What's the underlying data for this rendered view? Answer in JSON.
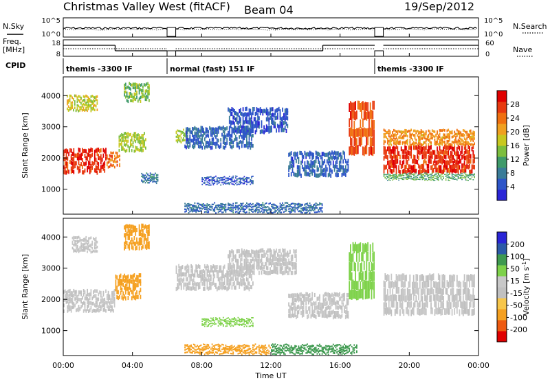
{
  "header": {
    "station": "Christmas Valley West (fitACF)",
    "beam": "Beam 04",
    "date": "19/Sep/2012"
  },
  "colors": {
    "power_scale": [
      "#2a25d6",
      "#2d55c8",
      "#3a7c98",
      "#3f9a6a",
      "#7cbe3e",
      "#c8c820",
      "#f0a020",
      "#f07010",
      "#e83a10",
      "#e00000"
    ],
    "velocity_scale": [
      "#e00000",
      "#ee5a10",
      "#f5a020",
      "#f7c64a",
      "#c0c0c0",
      "#c8c8c8",
      "#7ed24a",
      "#3f9a50",
      "#2c5aa8",
      "#2a25d6"
    ]
  },
  "chart_data": [
    {
      "type": "line",
      "name": "N.Sky / N.Search",
      "ylabel_left": "N.Sky",
      "ylabel_right": "N.Search",
      "left_ticks": [
        "10^5",
        "10^0"
      ],
      "right_ticks": [
        "10^5",
        "10^0"
      ],
      "xlim": [
        0,
        24
      ]
    },
    {
      "type": "line",
      "name": "Freq / Nave",
      "ylabel_left": "Freq.",
      "ylabel_left_unit": "[MHz]",
      "ylabel_right": "Nave",
      "left_ticks": [
        "18",
        "8"
      ],
      "right_ticks": [
        "60",
        "0"
      ],
      "xlim": [
        0,
        24
      ],
      "freq_segments": [
        {
          "t0": 0.0,
          "t1": 3.0,
          "v": 16
        },
        {
          "t0": 3.0,
          "t1": 6.0,
          "v": 12
        },
        {
          "t0": 6.5,
          "t1": 15.0,
          "v": 12
        },
        {
          "t0": 15.0,
          "t1": 18.0,
          "v": 16
        },
        {
          "t0": 18.5,
          "t1": 24.0,
          "v": 16
        }
      ]
    },
    {
      "type": "table",
      "name": "CPID",
      "label": "CPID",
      "segments": [
        {
          "start": 0.0,
          "end": 6.0,
          "text": "themis -3300 IF"
        },
        {
          "start": 6.0,
          "end": 18.0,
          "text": "normal (fast) 151 IF"
        },
        {
          "start": 18.0,
          "end": 24.0,
          "text": "themis -3300 IF"
        }
      ]
    },
    {
      "type": "heatmap",
      "name": "Power",
      "ylabel": "Slant Range [km]",
      "yticks": [
        1000,
        2000,
        3000,
        4000
      ],
      "ylim": [
        200,
        4600
      ],
      "xlim": [
        0,
        24
      ],
      "colorbar_label": "Power [dB]",
      "colorbar_ticks": [
        4,
        8,
        12,
        16,
        20,
        24,
        28
      ],
      "colorbar_range": [
        0,
        32
      ],
      "bands": [
        {
          "t0": 0.0,
          "t1": 2.5,
          "r0": 1500,
          "r1": 2300,
          "level": 28
        },
        {
          "t0": 2.5,
          "t1": 3.3,
          "r0": 1700,
          "r1": 2200,
          "level": 24
        },
        {
          "t0": 0.2,
          "t1": 2.0,
          "r0": 3500,
          "r1": 4000,
          "level": 18
        },
        {
          "t0": 3.2,
          "t1": 4.8,
          "r0": 2200,
          "r1": 2800,
          "level": 16
        },
        {
          "t0": 3.5,
          "t1": 5.0,
          "r0": 3800,
          "r1": 4400,
          "level": 14
        },
        {
          "t0": 4.5,
          "t1": 5.5,
          "r0": 1200,
          "r1": 1500,
          "level": 8
        },
        {
          "t0": 6.5,
          "t1": 7.2,
          "r0": 2500,
          "r1": 2900,
          "level": 16
        },
        {
          "t0": 7.0,
          "t1": 11.0,
          "r0": 2300,
          "r1": 3000,
          "level": 6
        },
        {
          "t0": 9.5,
          "t1": 13.0,
          "r0": 2800,
          "r1": 3600,
          "level": 5
        },
        {
          "t0": 8.0,
          "t1": 11.0,
          "r0": 1150,
          "r1": 1400,
          "level": 5
        },
        {
          "t0": 13.0,
          "t1": 16.5,
          "r0": 1400,
          "r1": 2200,
          "level": 6
        },
        {
          "t0": 16.5,
          "t1": 18.0,
          "r0": 2100,
          "r1": 3800,
          "level": 26
        },
        {
          "t0": 18.5,
          "t1": 23.8,
          "r0": 1500,
          "r1": 2400,
          "level": 28
        },
        {
          "t0": 18.5,
          "t1": 23.8,
          "r0": 2400,
          "r1": 2900,
          "level": 22
        },
        {
          "t0": 18.5,
          "t1": 23.8,
          "r0": 1300,
          "r1": 1500,
          "level": 12
        },
        {
          "t0": 7.0,
          "t1": 15.0,
          "r0": 250,
          "r1": 550,
          "level": 7
        }
      ]
    },
    {
      "type": "heatmap",
      "name": "Velocity",
      "ylabel": "Slant Range [km]",
      "yticks": [
        1000,
        2000,
        3000,
        4000
      ],
      "ylim": [
        200,
        4600
      ],
      "xlim": [
        0,
        24
      ],
      "xticks": [
        "00:00",
        "04:00",
        "08:00",
        "12:00",
        "16:00",
        "20:00",
        "00:00"
      ],
      "xlabel": "Time UT",
      "colorbar_label": "Velocity [m s",
      "colorbar_label_sup": "-1",
      "colorbar_label_end": "]",
      "colorbar_ticks": [
        -200,
        -100,
        -50,
        -15,
        15,
        50,
        100,
        200
      ],
      "bands": [
        {
          "t0": 0.0,
          "t1": 3.0,
          "r0": 1600,
          "r1": 2300,
          "level": 0
        },
        {
          "t0": 3.0,
          "t1": 4.5,
          "r0": 2000,
          "r1": 2800,
          "level": -60
        },
        {
          "t0": 3.5,
          "t1": 5.0,
          "r0": 3600,
          "r1": 4400,
          "level": -60
        },
        {
          "t0": 0.5,
          "t1": 2.0,
          "r0": 3500,
          "r1": 4000,
          "level": 0
        },
        {
          "t0": 6.5,
          "t1": 11.0,
          "r0": 2300,
          "r1": 3100,
          "level": 0
        },
        {
          "t0": 9.5,
          "t1": 13.5,
          "r0": 2800,
          "r1": 3600,
          "level": 0
        },
        {
          "t0": 8.0,
          "t1": 11.0,
          "r0": 1150,
          "r1": 1400,
          "level": 30
        },
        {
          "t0": 13.0,
          "t1": 16.5,
          "r0": 1400,
          "r1": 2200,
          "level": 0
        },
        {
          "t0": 16.5,
          "t1": 18.0,
          "r0": 2000,
          "r1": 3800,
          "level": 30
        },
        {
          "t0": 18.5,
          "t1": 23.8,
          "r0": 1500,
          "r1": 2800,
          "level": 0
        },
        {
          "t0": 7.0,
          "t1": 12.0,
          "r0": 250,
          "r1": 550,
          "level": -60
        },
        {
          "t0": 12.0,
          "t1": 17.0,
          "r0": 250,
          "r1": 550,
          "level": 60
        }
      ]
    }
  ]
}
